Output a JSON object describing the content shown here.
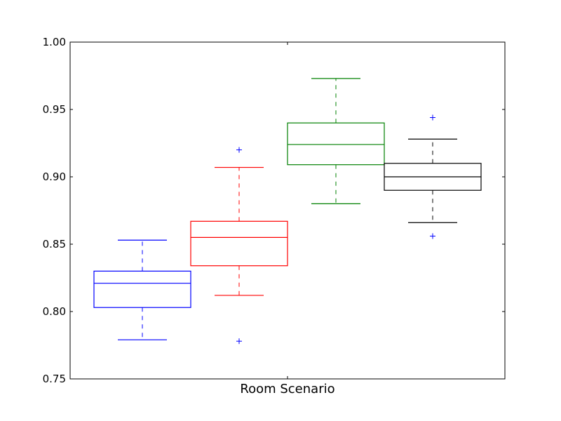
{
  "chart_data": {
    "type": "box",
    "xlabel": "Room Scenario",
    "ylabel": "",
    "title": "",
    "ylim": [
      0.75,
      1.0
    ],
    "yticks": [
      "0.75",
      "0.80",
      "0.85",
      "0.90",
      "0.95",
      "1.00"
    ],
    "grid": false,
    "boxes": [
      {
        "color": "#0000ff",
        "whisker_low": 0.779,
        "q1": 0.803,
        "median": 0.821,
        "q3": 0.83,
        "whisker_high": 0.853,
        "outliers": []
      },
      {
        "color": "#ff0000",
        "whisker_low": 0.812,
        "q1": 0.834,
        "median": 0.855,
        "q3": 0.867,
        "whisker_high": 0.907,
        "outliers": [
          0.92,
          0.778
        ]
      },
      {
        "color": "#008000",
        "whisker_low": 0.88,
        "q1": 0.909,
        "median": 0.924,
        "q3": 0.94,
        "whisker_high": 0.973,
        "outliers": []
      },
      {
        "color": "#000000",
        "whisker_low": 0.866,
        "q1": 0.89,
        "median": 0.9,
        "q3": 0.91,
        "whisker_high": 0.928,
        "outliers": [
          0.944,
          0.856
        ]
      }
    ],
    "outlier_color": "#0000ff"
  }
}
